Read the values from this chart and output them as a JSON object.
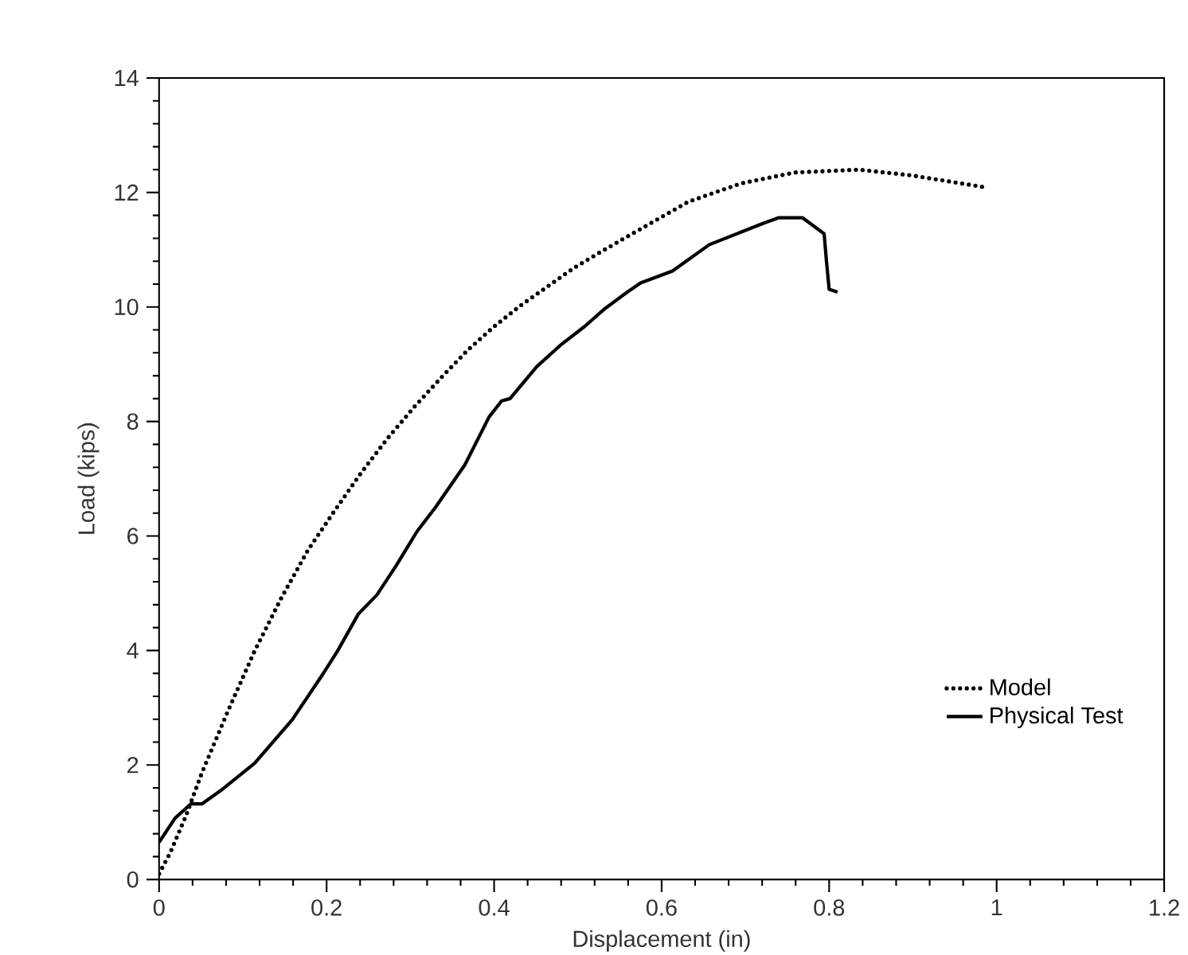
{
  "chart_data": {
    "type": "line",
    "xlabel": "Displacement (in)",
    "ylabel": "Load (kips)",
    "xlim": [
      0,
      1.2
    ],
    "ylim": [
      0,
      14
    ],
    "xticks": [
      0,
      0.2,
      0.4,
      0.6,
      0.8,
      1,
      1.2
    ],
    "yticks": [
      0,
      2,
      4,
      6,
      8,
      10,
      12,
      14
    ],
    "legend": "bottom right",
    "grid": false,
    "marker": "none",
    "series": [
      {
        "name": "Model",
        "color": "#000000",
        "line_style": "dotted",
        "x": [
          0,
          0.013,
          0.032,
          0.051,
          0.083,
          0.114,
          0.146,
          0.178,
          0.21,
          0.241,
          0.273,
          0.305,
          0.337,
          0.368,
          0.4,
          0.432,
          0.463,
          0.495,
          0.527,
          0.559,
          0.632,
          0.695,
          0.759,
          0.835,
          0.898,
          0.987
        ],
        "values": [
          0.1,
          0.46,
          1.11,
          1.86,
          2.97,
          3.99,
          4.92,
          5.76,
          6.45,
          7.1,
          7.71,
          8.26,
          8.77,
          9.24,
          9.66,
          10.03,
          10.35,
          10.68,
          10.96,
          11.23,
          11.84,
          12.16,
          12.35,
          12.4,
          12.3,
          12.09
        ]
      },
      {
        "name": "Physical Test",
        "color": "#000000",
        "line_style": "solid",
        "x": [
          0,
          0.019,
          0.038,
          0.051,
          0.076,
          0.114,
          0.159,
          0.197,
          0.213,
          0.238,
          0.26,
          0.283,
          0.308,
          0.33,
          0.365,
          0.394,
          0.409,
          0.419,
          0.451,
          0.479,
          0.508,
          0.533,
          0.559,
          0.575,
          0.613,
          0.657,
          0.721,
          0.74,
          0.768,
          0.794,
          0.797,
          0.8,
          0.81
        ],
        "values": [
          0.65,
          1.07,
          1.32,
          1.32,
          1.58,
          2.03,
          2.79,
          3.62,
          3.99,
          4.64,
          4.97,
          5.48,
          6.08,
          6.5,
          7.24,
          8.08,
          8.36,
          8.4,
          8.96,
          9.33,
          9.66,
          9.98,
          10.26,
          10.42,
          10.63,
          11.09,
          11.46,
          11.56,
          11.56,
          11.28,
          10.77,
          10.31,
          10.26
        ]
      }
    ]
  }
}
